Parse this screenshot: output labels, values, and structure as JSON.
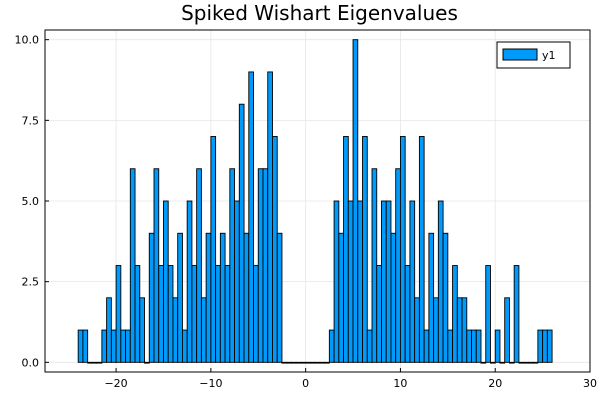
{
  "chart_data": {
    "type": "bar",
    "title": "Spiked Wishart Eigenvalues",
    "xlabel": "",
    "ylabel": "",
    "bin_width": 0.5,
    "bin_start": -24,
    "xlim": [
      -27.5,
      30
    ],
    "ylim": [
      -0.3,
      10.3
    ],
    "x_ticks": [
      -20,
      -10,
      0,
      10,
      20,
      30
    ],
    "x_tick_labels": [
      "−20",
      "−10",
      "0",
      "10",
      "20",
      "30"
    ],
    "y_ticks": [
      0,
      2.5,
      5,
      7.5,
      10
    ],
    "y_tick_labels": [
      "0.0",
      "2.5",
      "5.0",
      "7.5",
      "10.0"
    ],
    "grid": true,
    "legend_position": "top-right",
    "series": [
      {
        "name": "y1",
        "color": "#009AFA",
        "values": [
          1,
          1,
          0,
          0,
          0,
          1,
          2,
          1,
          3,
          1,
          1,
          6,
          3,
          2,
          0,
          4,
          6,
          3,
          5,
          3,
          2,
          4,
          1,
          5,
          3,
          6,
          2,
          4,
          7,
          3,
          4,
          3,
          6,
          5,
          8,
          4,
          9,
          3,
          6,
          6,
          9,
          7,
          4,
          0,
          0,
          0,
          0,
          0,
          0,
          0,
          0,
          0,
          0,
          1,
          5,
          4,
          7,
          5,
          10,
          5,
          7,
          1,
          6,
          3,
          5,
          5,
          4,
          6,
          7,
          3,
          5,
          2,
          7,
          1,
          4,
          2,
          5,
          4,
          1,
          3,
          2,
          2,
          1,
          1,
          1,
          0,
          3,
          0,
          1,
          0,
          2,
          0,
          3,
          0,
          0,
          0,
          0,
          1,
          1,
          1
        ]
      }
    ]
  }
}
